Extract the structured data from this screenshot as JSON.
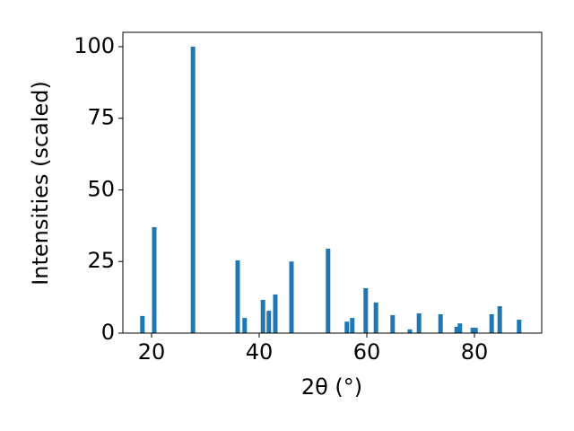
{
  "chart_data": {
    "type": "bar",
    "xlabel": "2θ (°)",
    "ylabel": "Intensities (scaled)",
    "x": [
      18.3,
      20.5,
      27.7,
      36.0,
      37.3,
      40.7,
      41.8,
      43.0,
      46.0,
      52.8,
      56.3,
      57.3,
      59.8,
      61.7,
      64.8,
      68.0,
      69.7,
      73.7,
      76.7,
      77.3,
      79.7,
      80.2,
      83.2,
      84.7,
      88.3
    ],
    "values": [
      6,
      37,
      100,
      25.4,
      5.3,
      11.6,
      7.8,
      13.5,
      25,
      29.5,
      4,
      5.3,
      15.7,
      10.7,
      6.3,
      1.3,
      6.9,
      6.6,
      2.2,
      3.4,
      1.9,
      1.9,
      6.6,
      9.4,
      4.7
    ],
    "color": "#1f77b4",
    "xlim": [
      14.67,
      92.5
    ],
    "ylim": [
      0,
      105
    ],
    "xticks": [
      20,
      40,
      60,
      80
    ],
    "yticks": [
      0,
      25,
      50,
      75,
      100
    ]
  }
}
